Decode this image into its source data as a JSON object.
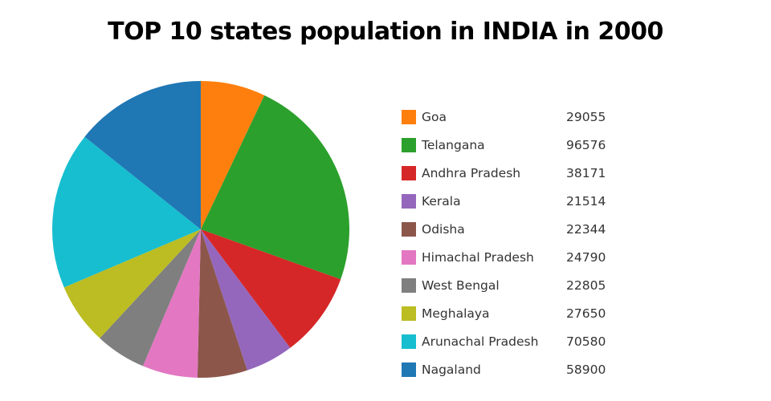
{
  "chart_data": {
    "type": "pie",
    "title": "TOP 10 states population in INDIA in 2000",
    "slices": [
      {
        "label": "Goa",
        "value": 29055,
        "color": "#ff7f0e"
      },
      {
        "label": "Telangana",
        "value": 96576,
        "color": "#2ca02c"
      },
      {
        "label": "Andhra Pradesh",
        "value": 38171,
        "color": "#d62728"
      },
      {
        "label": "Kerala",
        "value": 21514,
        "color": "#9467bd"
      },
      {
        "label": "Odisha",
        "value": 22344,
        "color": "#8c564b"
      },
      {
        "label": "Himachal Pradesh",
        "value": 24790,
        "color": "#e377c2"
      },
      {
        "label": "West Bengal",
        "value": 22805,
        "color": "#7f7f7f"
      },
      {
        "label": "Meghalaya",
        "value": 27650,
        "color": "#bcbd22"
      },
      {
        "label": "Arunachal Pradesh",
        "value": 70580,
        "color": "#17becf"
      },
      {
        "label": "Nagaland",
        "value": 58900,
        "color": "#1f77b4"
      }
    ],
    "direction": "clockwise",
    "start_angle": "12 o'clock",
    "legend_position": "right"
  }
}
